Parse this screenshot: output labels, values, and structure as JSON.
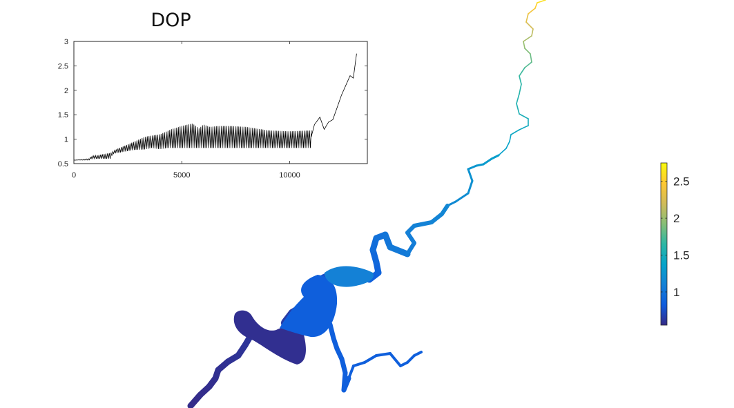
{
  "figure": {
    "title": "DOP"
  },
  "chart_data": [
    {
      "type": "line",
      "title": "DOP",
      "xlabel": "",
      "ylabel": "",
      "xlim": [
        0,
        13600
      ],
      "ylim": [
        0.5,
        3
      ],
      "xticks": [
        "0",
        "5000",
        "10000"
      ],
      "xtick_values": [
        0,
        5000,
        10000
      ],
      "yticks": [
        "0.5",
        "1",
        "1.5",
        "2",
        "2.5",
        "3"
      ],
      "ytick_values": [
        0.5,
        1,
        1.5,
        2,
        2.5,
        3
      ],
      "line_color": "#000000",
      "description_of_series": "oscillating envelope",
      "envelope_lower": {
        "x": [
          0,
          700,
          800,
          1700,
          1800,
          2800,
          3300,
          3600,
          3900,
          4100,
          4300,
          11000
        ],
        "y": [
          0.57,
          0.57,
          0.6,
          0.6,
          0.7,
          0.78,
          0.79,
          0.82,
          0.8,
          0.8,
          0.82,
          0.82
        ]
      },
      "envelope_upper": {
        "x": [
          0,
          700,
          800,
          1700,
          2000,
          2800,
          3300,
          3700,
          4000,
          4500,
          5000,
          5500,
          5800,
          6000,
          6300,
          6700,
          7200,
          8000,
          9000,
          10000,
          11000
        ],
        "y": [
          0.57,
          0.6,
          0.65,
          0.72,
          0.8,
          0.95,
          1.05,
          1.08,
          1.1,
          1.2,
          1.27,
          1.32,
          1.22,
          1.3,
          1.25,
          1.27,
          1.27,
          1.25,
          1.18,
          1.16,
          1.18
        ]
      },
      "tail": {
        "x": [
          11000,
          11150,
          11400,
          11600,
          11800,
          12000,
          12200,
          12400,
          12600,
          12800,
          12950,
          13100
        ],
        "y": [
          1.05,
          1.3,
          1.45,
          1.2,
          1.35,
          1.4,
          1.65,
          1.9,
          2.1,
          2.3,
          2.25,
          2.75
        ]
      }
    },
    {
      "type": "heatmap",
      "title": "",
      "colormap": "parula",
      "colorbar_range": [
        0.55,
        2.75
      ],
      "colorbar_ticks": [
        "1",
        "1.5",
        "2",
        "2.5"
      ],
      "colorbar_tick_values": [
        1,
        1.5,
        2,
        2.5
      ],
      "colorbar_colors": [
        "#352a87",
        "#0f5cdd",
        "#1481d6",
        "#06a4ca",
        "#2eb7a4",
        "#87bf77",
        "#d1bb59",
        "#fec832",
        "#f9fb0e"
      ],
      "river_path_values": {
        "x": [
          0,
          1,
          2,
          3,
          4,
          5,
          6,
          7,
          8,
          9,
          10
        ],
        "value": [
          0.56,
          0.6,
          0.65,
          0.85,
          1.05,
          1.15,
          1.3,
          1.45,
          1.65,
          2.1,
          2.7
        ]
      }
    }
  ]
}
